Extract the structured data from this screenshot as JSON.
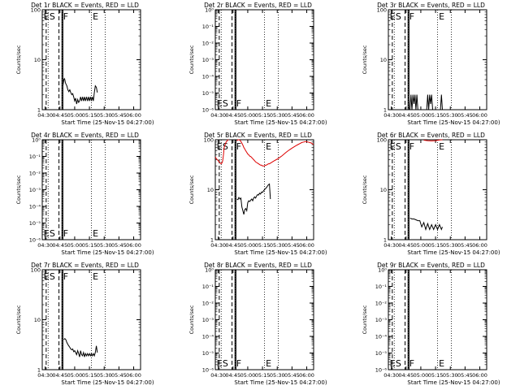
{
  "chart_data": [
    {
      "type": "line",
      "title": "Det 1r BLACK = Events, RED = LLD",
      "ylabel": "Counts/sec",
      "xlabel": "Start Time (25-Nov-15 04:27:00)",
      "x_tick_labels": [
        "04:30",
        "04:45",
        "05:00",
        "05:15",
        "05:30",
        "05:45",
        "06:00"
      ],
      "xlim_minutes": [
        0,
        100
      ],
      "yscale": "log",
      "ylim": [
        1,
        100
      ],
      "y_tick_labels": [
        "1",
        "10",
        "100"
      ],
      "markers": [
        "E",
        "S",
        "F",
        "E"
      ],
      "series": [
        {
          "color": "#000000",
          "x": [
            21,
            22,
            22.5,
            23,
            23.5,
            24,
            25,
            26,
            27,
            28,
            29,
            30,
            31,
            32,
            33,
            34,
            35,
            36,
            37,
            38,
            39,
            40,
            41,
            42,
            43,
            44,
            45,
            46,
            47,
            48,
            49,
            50,
            51,
            52,
            53,
            54,
            55,
            56
          ],
          "y": [
            3,
            4,
            4.2,
            4,
            3.5,
            3.3,
            3,
            2.5,
            2.3,
            2.5,
            2.2,
            2.0,
            2.1,
            1.8,
            1.5,
            1.7,
            1.3,
            1.6,
            1.4,
            1.5,
            1.8,
            1.5,
            1.8,
            1.5,
            1.8,
            1.5,
            1.8,
            1.5,
            1.8,
            1.5,
            1.8,
            1.5,
            1.8,
            1.5,
            2.2,
            3,
            2.8,
            2.2
          ]
        }
      ]
    },
    {
      "type": "line",
      "title": "Det 2r BLACK = Events, RED = LLD",
      "ylabel": "Counts/sec",
      "xlabel": "Start Time (25-Nov-15 04:27:00)",
      "x_tick_labels": [
        "04:30",
        "04:45",
        "05:00",
        "05:15",
        "05:30",
        "05:45",
        "06:00"
      ],
      "xlim_minutes": [
        0,
        100
      ],
      "yscale": "log",
      "ylim": [
        1e-06,
        1
      ],
      "y_tick_labels": [
        "10⁻⁶",
        "10⁻⁵",
        "10⁻⁴",
        "10⁻³",
        "10⁻²",
        "10⁻¹",
        "10⁰"
      ],
      "markers": [
        "E",
        "S",
        "F",
        "E"
      ],
      "series": []
    },
    {
      "type": "line",
      "title": "Det 3r BLACK = Events, RED = LLD",
      "ylabel": "Counts/sec",
      "xlabel": "Start Time (25-Nov-15 04:27:00)",
      "x_tick_labels": [
        "04:30",
        "04:45",
        "05:00",
        "05:15",
        "05:30",
        "05:45",
        "06:00"
      ],
      "xlim_minutes": [
        0,
        100
      ],
      "yscale": "log",
      "ylim": [
        1,
        100
      ],
      "y_tick_labels": [
        "1",
        "10",
        "100"
      ],
      "markers": [
        "E",
        "S",
        "F",
        "E"
      ],
      "series": [
        {
          "color": "#000000",
          "x": [
            22,
            23,
            24,
            25,
            26,
            27,
            28,
            29,
            30,
            31,
            32,
            33,
            34,
            35,
            36,
            37,
            38,
            39,
            40,
            41,
            42,
            43,
            44,
            45,
            46,
            47,
            48,
            49,
            50,
            51,
            52,
            53,
            54,
            55
          ],
          "y": [
            1,
            2,
            1,
            2,
            1.3,
            2,
            1,
            2,
            1,
            1,
            1,
            1,
            1,
            1,
            1,
            1,
            1,
            1,
            2,
            1,
            2,
            1.3,
            2,
            1,
            1,
            1,
            1,
            1,
            1,
            1,
            1,
            1,
            2,
            1
          ]
        }
      ]
    },
    {
      "type": "line",
      "title": "Det 4r BLACK = Events, RED = LLD",
      "ylabel": "Counts/sec",
      "xlabel": "Start Time (25-Nov-15 04:27:00)",
      "x_tick_labels": [
        "04:30",
        "04:45",
        "05:00",
        "05:15",
        "05:30",
        "05:45",
        "06:00"
      ],
      "xlim_minutes": [
        0,
        100
      ],
      "yscale": "log",
      "ylim": [
        1e-06,
        1
      ],
      "y_tick_labels": [
        "10⁻⁶",
        "10⁻⁵",
        "10⁻⁴",
        "10⁻³",
        "10⁻²",
        "10⁻¹",
        "10⁰"
      ],
      "markers": [
        "E",
        "S",
        "F",
        "E"
      ],
      "series": []
    },
    {
      "type": "line",
      "title": "Det 5r BLACK = Events, RED = LLD",
      "ylabel": "Counts/sec",
      "xlabel": "Start Time (25-Nov-15 04:27:00)",
      "x_tick_labels": [
        "04:30",
        "04:45",
        "05:00",
        "05:15",
        "05:30",
        "05:45",
        "06:00"
      ],
      "xlim_minutes": [
        0,
        100
      ],
      "yscale": "log",
      "ylim": [
        1,
        100
      ],
      "y_tick_labels": [
        "1",
        "10",
        "100"
      ],
      "markers": [
        "E",
        "S",
        "F",
        "E"
      ],
      "series": [
        {
          "color": "#000000",
          "x": [
            22,
            23,
            24,
            25,
            26,
            27,
            28,
            29,
            30,
            31,
            32,
            33,
            34,
            35,
            36,
            37,
            38,
            39,
            40,
            41,
            42,
            43,
            44,
            45,
            46,
            47,
            48,
            49,
            50,
            51,
            52,
            53,
            54,
            55,
            56
          ],
          "y": [
            6.5,
            6.3,
            7,
            6.5,
            6.8,
            4.5,
            3.8,
            3.2,
            4,
            4.2,
            3.8,
            5.5,
            6,
            5.8,
            6.2,
            6.5,
            6,
            6.8,
            7.2,
            6.8,
            7.5,
            8,
            7.8,
            8.5,
            8.2,
            9,
            8.8,
            9.5,
            10,
            10.5,
            11,
            11.8,
            12.5,
            13,
            6.5
          ]
        },
        {
          "color": "#dd0000",
          "x": [
            0,
            1,
            2,
            3,
            4,
            5,
            6,
            7,
            7.5,
            8,
            8.5,
            9,
            10,
            11,
            12,
            13,
            13.5
          ],
          "y": [
            45,
            42,
            40,
            38,
            36,
            34,
            33,
            35,
            38,
            45,
            55,
            70,
            80,
            90,
            95,
            100,
            100
          ]
        },
        {
          "color": "#dd0000",
          "x": [
            22,
            23,
            24,
            25,
            26,
            27,
            28,
            29,
            30,
            31,
            32,
            33,
            34,
            35,
            36,
            37,
            38,
            39,
            40,
            41,
            42,
            43,
            44,
            45,
            46,
            47,
            48,
            49,
            50,
            51,
            52,
            53,
            54,
            55,
            56,
            58,
            60,
            62,
            64,
            66,
            68,
            70,
            72,
            74,
            76,
            78,
            80,
            82,
            84,
            86,
            88,
            90,
            92,
            94,
            96,
            98,
            100
          ],
          "y": [
            95,
            100,
            100,
            98,
            92,
            85,
            78,
            70,
            65,
            60,
            56,
            52,
            50,
            47,
            46,
            44,
            42,
            40,
            38,
            36,
            35,
            34,
            33,
            32,
            31,
            31,
            30,
            30,
            30,
            31,
            31,
            32,
            33,
            33,
            34,
            36,
            38,
            40,
            42,
            45,
            48,
            52,
            56,
            60,
            64,
            68,
            72,
            76,
            80,
            84,
            88,
            90,
            92,
            90,
            88,
            85,
            80
          ]
        }
      ]
    },
    {
      "type": "line",
      "title": "Det 6r BLACK = Events, RED = LLD",
      "ylabel": "Counts/sec",
      "xlabel": "Start Time (25-Nov-15 04:27:00)",
      "x_tick_labels": [
        "04:30",
        "04:45",
        "05:00",
        "05:15",
        "05:30",
        "05:45",
        "06:00"
      ],
      "xlim_minutes": [
        0,
        100
      ],
      "yscale": "log",
      "ylim": [
        1,
        100
      ],
      "y_tick_labels": [
        "1",
        "10",
        "100"
      ],
      "markers": [
        "E",
        "S",
        "F",
        "E"
      ],
      "series": [
        {
          "color": "#000000",
          "x": [
            22,
            24,
            26,
            28,
            30,
            32,
            34,
            36,
            38,
            40,
            42,
            44,
            46,
            48,
            50,
            52,
            54,
            55
          ],
          "y": [
            2.7,
            2.6,
            2.6,
            2.5,
            2.4,
            2.4,
            1.8,
            2.2,
            1.6,
            2.1,
            1.6,
            2.0,
            1.6,
            2.0,
            1.6,
            2.0,
            1.6,
            1.8
          ]
        },
        {
          "color": "#dd0000",
          "x": [
            36,
            40,
            44,
            48,
            52,
            55
          ],
          "y": [
            98,
            96,
            95,
            96,
            99,
            100
          ]
        }
      ]
    },
    {
      "type": "line",
      "title": "Det 7r BLACK = Events, RED = LLD",
      "ylabel": "Counts/sec",
      "xlabel": "Start Time (25-Nov-15 04:27:00)",
      "x_tick_labels": [
        "04:30",
        "04:45",
        "05:00",
        "05:15",
        "05:30",
        "05:45",
        "06:00"
      ],
      "xlim_minutes": [
        0,
        100
      ],
      "yscale": "log",
      "ylim": [
        1,
        100
      ],
      "y_tick_labels": [
        "1",
        "10",
        "100"
      ],
      "markers": [
        "E",
        "S",
        "F",
        "E"
      ],
      "series": [
        {
          "color": "#000000",
          "x": [
            22,
            23,
            24,
            25,
            26,
            27,
            28,
            29,
            30,
            31,
            32,
            33,
            34,
            35,
            36,
            37,
            38,
            39,
            40,
            41,
            42,
            43,
            44,
            45,
            46,
            47,
            48,
            49,
            50,
            51,
            52,
            53,
            54,
            55,
            56
          ],
          "y": [
            4,
            4.2,
            4,
            3.5,
            3.2,
            3,
            2.8,
            2.6,
            2.5,
            2.6,
            2.3,
            2.4,
            2.2,
            2.0,
            2.4,
            2.1,
            1.8,
            2.4,
            2.0,
            1.9,
            2.2,
            1.8,
            2.1,
            1.9,
            2.1,
            1.9,
            2.1,
            1.9,
            2.1,
            1.9,
            2.1,
            1.9,
            2.2,
            3,
            2.2
          ]
        }
      ]
    },
    {
      "type": "line",
      "title": "Det 8r BLACK = Events, RED = LLD",
      "ylabel": "Counts/sec",
      "xlabel": "Start Time (25-Nov-15 04:27:00)",
      "x_tick_labels": [
        "04:30",
        "04:45",
        "05:00",
        "05:15",
        "05:30",
        "05:45",
        "06:00"
      ],
      "xlim_minutes": [
        0,
        100
      ],
      "yscale": "log",
      "ylim": [
        1e-06,
        1
      ],
      "y_tick_labels": [
        "10⁻⁶",
        "10⁻⁵",
        "10⁻⁴",
        "10⁻³",
        "10⁻²",
        "10⁻¹",
        "10⁰"
      ],
      "markers": [
        "E",
        "S",
        "F",
        "E"
      ],
      "series": []
    },
    {
      "type": "line",
      "title": "Det 9r BLACK = Events, RED = LLD",
      "ylabel": "Counts/sec",
      "xlabel": "Start Time (25-Nov-15 04:27:00)",
      "x_tick_labels": [
        "04:30",
        "04:45",
        "05:00",
        "05:15",
        "05:30",
        "05:45",
        "06:00"
      ],
      "xlim_minutes": [
        0,
        100
      ],
      "yscale": "log",
      "ylim": [
        1e-06,
        1
      ],
      "y_tick_labels": [
        "10⁻⁶",
        "10⁻⁵",
        "10⁻⁴",
        "10⁻³",
        "10⁻²",
        "10⁻¹",
        "10⁰"
      ],
      "markers": [
        "E",
        "S",
        "F",
        "E"
      ],
      "series": []
    }
  ]
}
